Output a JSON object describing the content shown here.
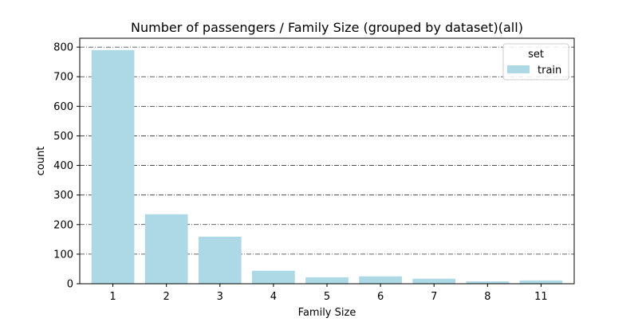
{
  "chart_data": {
    "type": "bar",
    "title": "Number of passengers / Family Size (grouped by dataset)(all)",
    "xlabel": "Family Size",
    "ylabel": "count",
    "categories": [
      "1",
      "2",
      "3",
      "4",
      "5",
      "6",
      "7",
      "8",
      "11"
    ],
    "series": [
      {
        "name": "train",
        "values": [
          790,
          235,
          159,
          44,
          22,
          25,
          17,
          8,
          11
        ]
      }
    ],
    "ylim": [
      0,
      830
    ],
    "yticks": [
      0,
      100,
      200,
      300,
      400,
      500,
      600,
      700,
      800
    ],
    "grid": true,
    "legend": {
      "title": "set",
      "placement": "top-right"
    },
    "colors": {
      "bar": "#add8e6",
      "grid": "#333333",
      "axis": "#000000"
    }
  }
}
